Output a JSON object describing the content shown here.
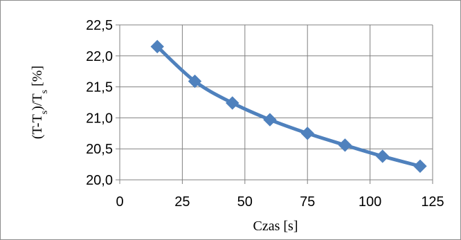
{
  "chart_data": {
    "type": "line",
    "xlabel": "Czas [s]",
    "ylabel": {
      "base": "(T-T",
      "sub1": "s",
      "mid": ")/T",
      "sub2": "s",
      "tail": " [%]"
    },
    "xlim": [
      0,
      125
    ],
    "ylim": [
      20.0,
      22.5
    ],
    "x_ticks": [
      "0",
      "25",
      "50",
      "75",
      "100",
      "125"
    ],
    "y_ticks": [
      "20,0",
      "20,5",
      "21,0",
      "21,5",
      "22,0",
      "22,5"
    ],
    "grid": true,
    "legend": "none",
    "series": [
      {
        "x": [
          15,
          30,
          45,
          60,
          75,
          90,
          105,
          120
        ],
        "y": [
          22.15,
          21.59,
          21.24,
          20.97,
          20.75,
          20.56,
          20.38,
          20.22
        ]
      }
    ],
    "colors": {
      "series": "#4f81bd",
      "grid": "#808080",
      "axis": "#808080"
    }
  }
}
